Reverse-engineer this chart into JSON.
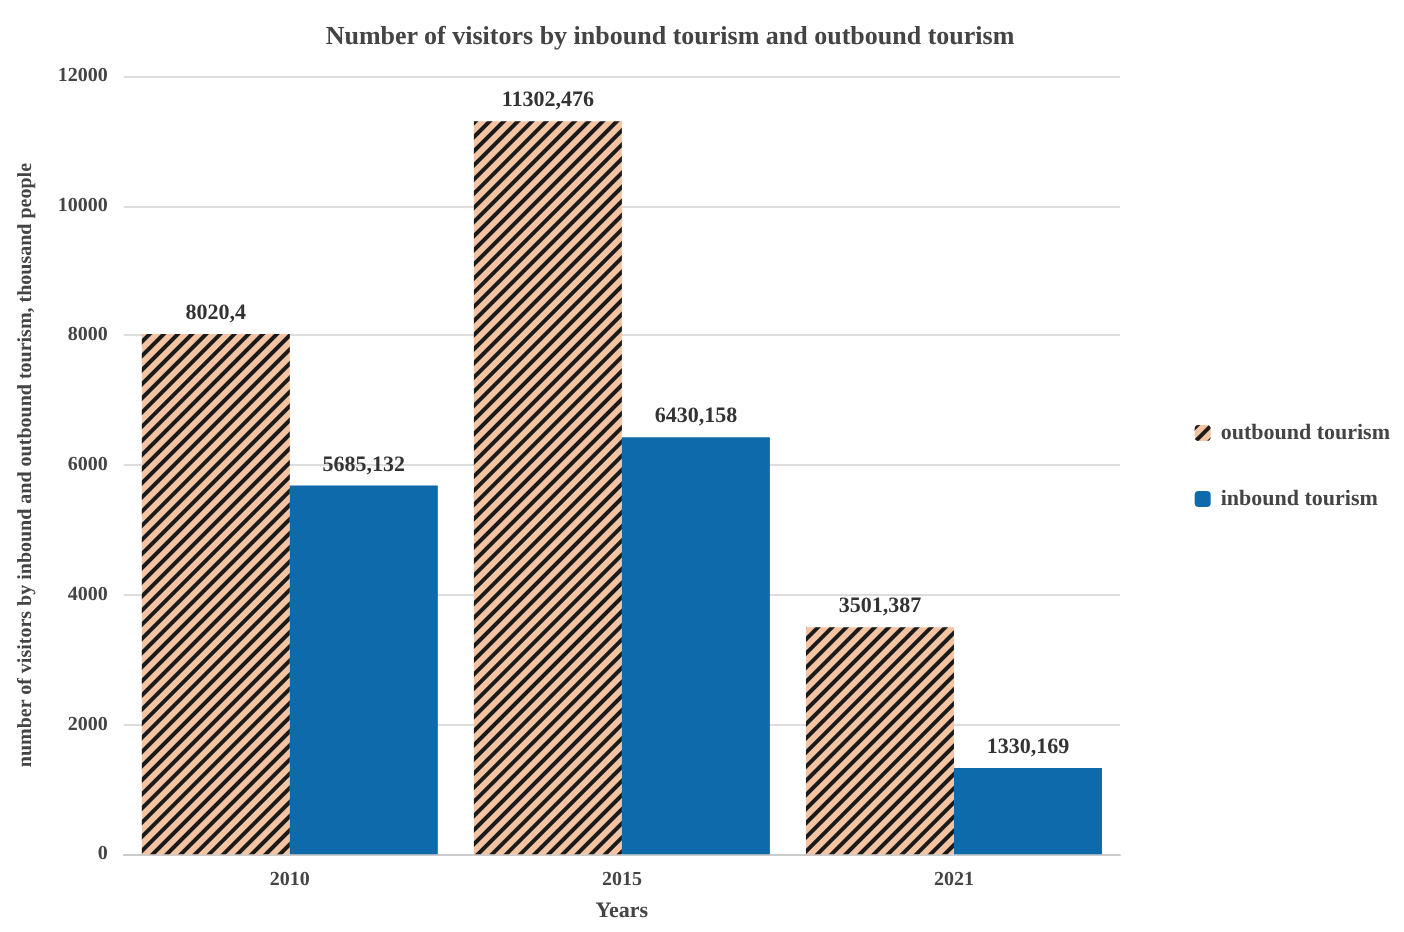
{
  "chart_data": {
    "type": "bar",
    "title": "Number of visitors by inbound tourism and outbound tourism",
    "xlabel": "Years",
    "ylabel": "number of visitors by inbound and outbound tourism, thousand people",
    "categories": [
      "2010",
      "2015",
      "2021"
    ],
    "series": [
      {
        "name": "outbound tourism",
        "color": "#f4c4a2",
        "values": [
          8020.4,
          11302.476,
          3501.387
        ],
        "value_labels": [
          "8020,4",
          "11302,476",
          "3501,387"
        ]
      },
      {
        "name": "inbound tourism",
        "color": "#0f6aab",
        "values": [
          5685.132,
          6430.158,
          1330.169
        ],
        "value_labels": [
          "5685,132",
          "6430,158",
          "1330,169"
        ]
      }
    ],
    "ylim": [
      0,
      12000
    ],
    "yticks": [
      0,
      2000,
      4000,
      6000,
      8000,
      10000,
      12000
    ],
    "grid": "y",
    "legend": "right"
  }
}
